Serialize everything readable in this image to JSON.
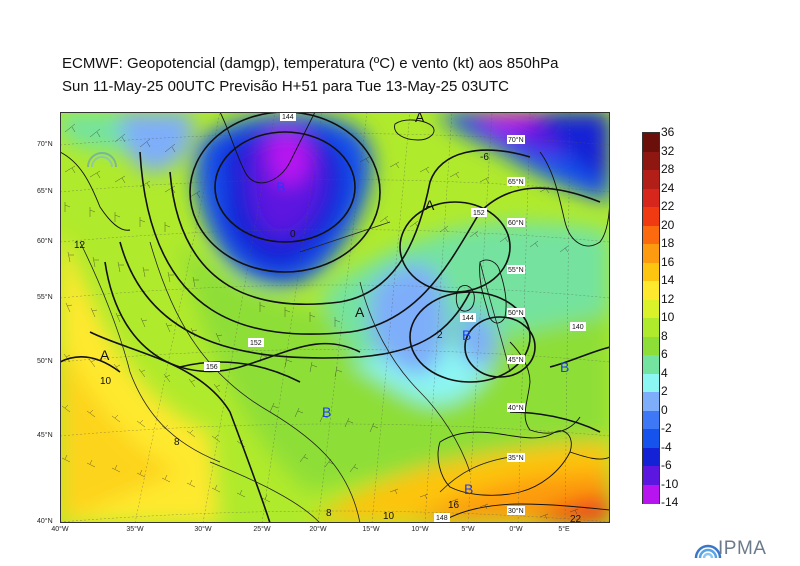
{
  "title_line1": "ECMWF:  Geopotencial (damgp), temperatura (ºC) e vento (kt) aos 850hPa",
  "title_line2": "Sun 11-May-25 00UTC Previsão H+51 para Tue 13-May-25 03UTC",
  "logo_text": "IPMA",
  "lat_labels": [
    "70°N",
    "65°N",
    "60°N",
    "55°N",
    "50°N",
    "45°N",
    "40°N"
  ],
  "lon_labels": [
    "40°W",
    "35°W",
    "30°W",
    "25°W",
    "20°W",
    "15°W",
    "10°W",
    "5°W",
    "0°W",
    "5°E"
  ],
  "colorbar": {
    "ticks": [
      "36",
      "32",
      "28",
      "24",
      "22",
      "20",
      "18",
      "16",
      "14",
      "12",
      "10",
      "8",
      "6",
      "4",
      "2",
      "0",
      "-2",
      "-4",
      "-6",
      "-10",
      "-14"
    ],
    "colors": [
      "#6b0f0a",
      "#8e1712",
      "#b11f18",
      "#d7261b",
      "#ef3a12",
      "#fb6a0e",
      "#fd9b10",
      "#fdc410",
      "#fee92e",
      "#d9f22a",
      "#b0ea2c",
      "#8ede38",
      "#74e39f",
      "#8cf6f2",
      "#7eaefa",
      "#3e78f6",
      "#1652ec",
      "#1422d6",
      "#5b17e0",
      "#b814f0"
    ]
  },
  "pressure_centers": [
    {
      "label": "A",
      "kind": "high"
    },
    {
      "label": "A",
      "kind": "high"
    },
    {
      "label": "A",
      "kind": "high"
    },
    {
      "label": "A",
      "kind": "high"
    },
    {
      "label": "B",
      "kind": "low"
    },
    {
      "label": "B",
      "kind": "low"
    },
    {
      "label": "B",
      "kind": "low"
    },
    {
      "label": "B",
      "kind": "low"
    },
    {
      "label": "B",
      "kind": "low"
    }
  ],
  "contour_labels": [
    "152",
    "144",
    "140",
    "156",
    "148",
    "152",
    "144"
  ],
  "isotherm_labels": [
    "12",
    "10",
    "8",
    "2",
    "0",
    "-6",
    "10",
    "8",
    "16",
    "22"
  ],
  "grid_labels": [
    "55°N",
    "50°N",
    "45°N",
    "40°N",
    "35°N",
    "30°N",
    "60°N",
    "65°N",
    "70°N"
  ],
  "colors": {
    "high_label": "#111111",
    "low_label": "#1a3cff"
  }
}
